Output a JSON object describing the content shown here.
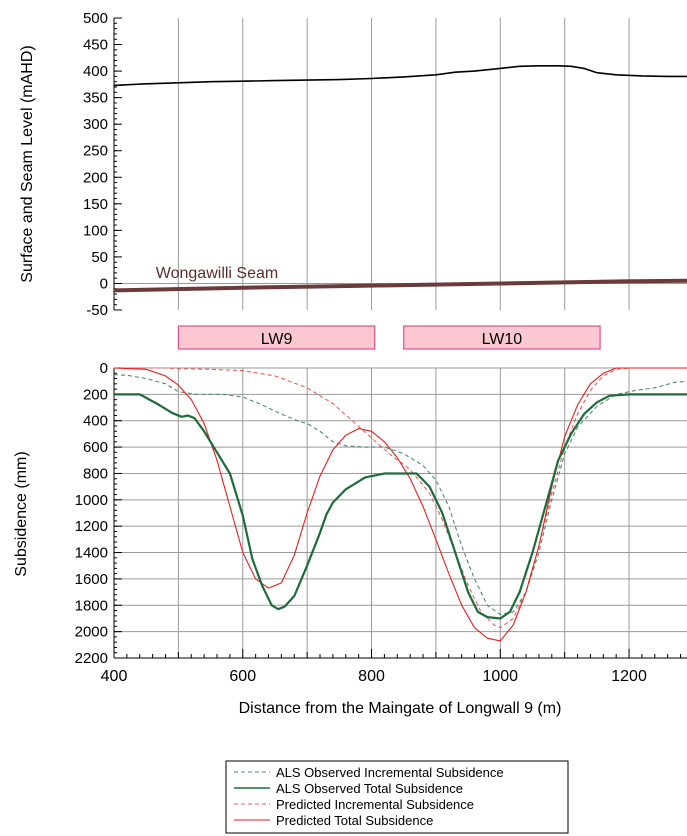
{
  "chart_data": [
    {
      "type": "line",
      "panel": "top",
      "title": "",
      "xlabel": "",
      "ylabel": "Surface and Seam Level (mAHD)",
      "xlim": [
        400,
        1290
      ],
      "ylim": [
        -50,
        500
      ],
      "x_ticks": [
        400,
        500,
        600,
        700,
        800,
        900,
        1000,
        1100,
        1200
      ],
      "y_ticks": [
        -50,
        0,
        50,
        100,
        150,
        200,
        250,
        300,
        350,
        400,
        450,
        500
      ],
      "grid": true,
      "annotations": [
        {
          "text": "Wongawilli Seam",
          "x": 560,
          "y": 5
        }
      ],
      "series": [
        {
          "color": "#000000",
          "x": [
            400,
            450,
            500,
            550,
            600,
            650,
            700,
            750,
            800,
            850,
            900,
            930,
            960,
            1000,
            1030,
            1060,
            1090,
            1110,
            1130,
            1150,
            1180,
            1220,
            1260,
            1290
          ],
          "y": [
            373,
            376,
            378,
            380,
            381,
            382,
            383,
            384,
            386,
            389,
            393,
            398,
            400,
            405,
            409,
            410,
            410,
            409,
            405,
            397,
            393,
            391,
            390,
            390
          ]
        },
        {
          "color": "#6b3a3a",
          "x": [
            400,
            600,
            800,
            1000,
            1200,
            1290
          ],
          "y": [
            -13,
            -8,
            -4,
            0,
            4,
            5
          ]
        }
      ]
    },
    {
      "type": "line",
      "panel": "bottom",
      "title": "",
      "xlabel": "Distance from the Maingate of Longwall 9 (m)",
      "ylabel": "Subsidence (mm)",
      "xlim": [
        400,
        1290
      ],
      "ylim": [
        0,
        2200
      ],
      "y_inverted": true,
      "x_ticks": [
        400,
        600,
        800,
        1000,
        1200
      ],
      "y_ticks": [
        0,
        200,
        400,
        600,
        800,
        1000,
        1200,
        1400,
        1600,
        1800,
        2000,
        2200
      ],
      "grid": true,
      "panels_labels": [
        {
          "label": "LW9",
          "x_start": 500,
          "x_end": 805
        },
        {
          "label": "LW10",
          "x_start": 850,
          "x_end": 1155
        }
      ],
      "legend_position": "bottom-center",
      "series": [
        {
          "name": "ALS Observed Incremental Subsidence",
          "color": "#4f8a6e",
          "dash": "dashed",
          "x": [
            400,
            420,
            450,
            480,
            500,
            530,
            570,
            600,
            630,
            660,
            690,
            700,
            720,
            740,
            760,
            790,
            820,
            850,
            880,
            900,
            920,
            940,
            960,
            980,
            1000,
            1020,
            1040,
            1060,
            1080,
            1100,
            1120,
            1150,
            1180,
            1210,
            1240,
            1270,
            1290
          ],
          "y": [
            50,
            55,
            80,
            120,
            180,
            200,
            200,
            220,
            280,
            350,
            410,
            420,
            480,
            560,
            590,
            600,
            600,
            650,
            740,
            850,
            1050,
            1350,
            1600,
            1800,
            1870,
            1850,
            1700,
            1400,
            1000,
            650,
            450,
            290,
            200,
            170,
            150,
            110,
            100
          ]
        },
        {
          "name": "ALS Observed Total Subsidence",
          "color": "#1e6b3c",
          "dash": "solid",
          "x": [
            400,
            440,
            470,
            490,
            505,
            515,
            525,
            540,
            560,
            580,
            600,
            615,
            630,
            645,
            655,
            665,
            680,
            700,
            720,
            730,
            740,
            760,
            790,
            820,
            850,
            870,
            890,
            910,
            930,
            950,
            965,
            980,
            1000,
            1015,
            1030,
            1050,
            1070,
            1090,
            1110,
            1130,
            1150,
            1170,
            1200,
            1290
          ],
          "y": [
            200,
            200,
            280,
            340,
            370,
            360,
            380,
            480,
            640,
            800,
            1120,
            1450,
            1650,
            1800,
            1830,
            1810,
            1730,
            1500,
            1250,
            1110,
            1020,
            920,
            830,
            800,
            800,
            800,
            900,
            1100,
            1400,
            1700,
            1850,
            1890,
            1900,
            1850,
            1700,
            1400,
            1050,
            700,
            500,
            350,
            260,
            210,
            200,
            200
          ]
        },
        {
          "name": "Predicted Incremental Subsidence",
          "color": "#f05a5a",
          "dash": "dashed",
          "x": [
            400,
            480,
            500,
            550,
            600,
            650,
            700,
            740,
            770,
            800,
            830,
            860,
            890,
            910,
            930,
            950,
            970,
            990,
            1000,
            1020,
            1040,
            1060,
            1080,
            1100,
            1120,
            1140,
            1160,
            1180,
            1200,
            1290
          ],
          "y": [
            0,
            0,
            5,
            10,
            20,
            60,
            150,
            270,
            400,
            530,
            660,
            770,
            950,
            1150,
            1400,
            1650,
            1850,
            1950,
            1970,
            1900,
            1700,
            1350,
            950,
            600,
            350,
            170,
            60,
            10,
            0,
            0
          ]
        },
        {
          "name": "Predicted Total Subsidence",
          "color": "#e81e1e",
          "dash": "solid",
          "x": [
            400,
            450,
            480,
            500,
            520,
            540,
            560,
            580,
            600,
            620,
            640,
            660,
            680,
            700,
            720,
            740,
            760,
            780,
            800,
            820,
            840,
            860,
            880,
            900,
            920,
            940,
            960,
            980,
            1000,
            1020,
            1040,
            1060,
            1080,
            1100,
            1120,
            1140,
            1160,
            1180,
            1200,
            1290
          ],
          "y": [
            0,
            10,
            60,
            130,
            240,
            420,
            700,
            1050,
            1400,
            1600,
            1670,
            1630,
            1420,
            1100,
            820,
            620,
            510,
            460,
            480,
            560,
            680,
            840,
            1050,
            1300,
            1560,
            1800,
            1970,
            2050,
            2070,
            1950,
            1700,
            1350,
            900,
            520,
            280,
            120,
            40,
            0,
            0,
            0
          ]
        }
      ]
    }
  ]
}
